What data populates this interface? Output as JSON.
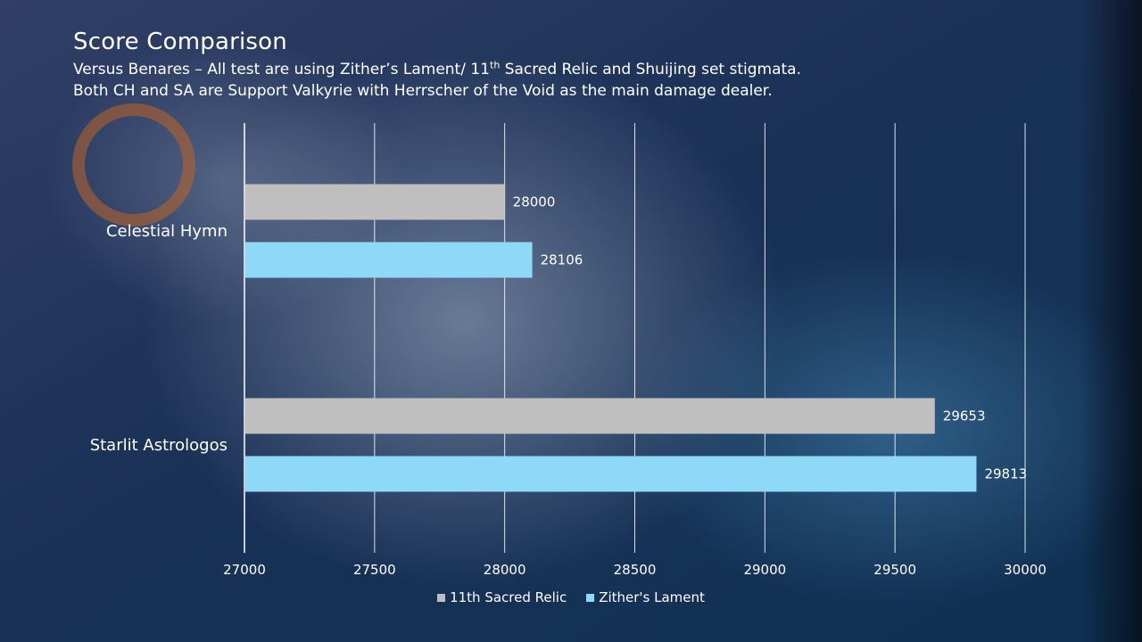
{
  "chart_data": {
    "type": "bar",
    "orientation": "horizontal",
    "title": "Score Comparison",
    "subtitle_line1_a": "Versus Benares – All test are using Zither’s Lament/ 11",
    "subtitle_line1_sup": "th",
    "subtitle_line1_b": " Sacred Relic and Shuijing set stigmata.",
    "subtitle_line2": "Both CH and SA are Support Valkyrie with Herrscher of the Void as the main damage dealer.",
    "categories": [
      "Celestial Hymn",
      "Starlit Astrologos"
    ],
    "series": [
      {
        "name": "11th Sacred Relic",
        "color": "#bfbfbf",
        "values": [
          28000,
          29653
        ]
      },
      {
        "name": "Zither's Lament",
        "color": "#8ed8f8",
        "values": [
          28106,
          29813
        ]
      }
    ],
    "xlim": [
      27000,
      30000
    ],
    "xticks": [
      "27000",
      "27500",
      "28000",
      "28500",
      "29000",
      "29500",
      "30000"
    ],
    "grid": true,
    "legend_position": "bottom"
  }
}
